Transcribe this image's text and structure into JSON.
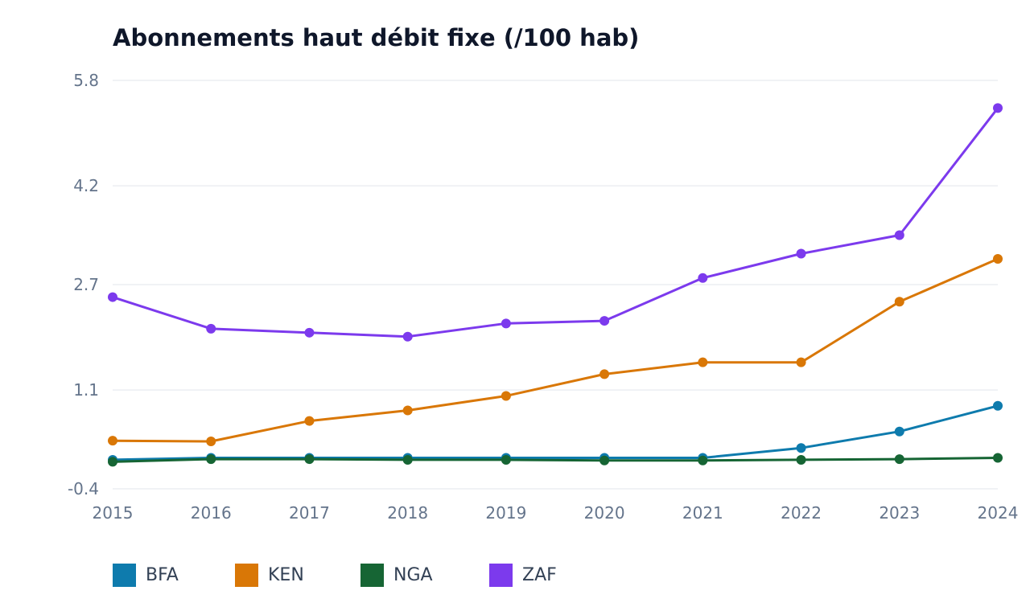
{
  "chart_data": {
    "type": "line",
    "title": "Abonnements haut débit fixe (/100 hab)",
    "xlabel": "",
    "ylabel": "",
    "x": [
      "2015",
      "2016",
      "2017",
      "2018",
      "2019",
      "2020",
      "2021",
      "2022",
      "2023",
      "2024"
    ],
    "yticks": [
      "5.8",
      "4.2",
      "2.7",
      "1.1",
      "-0.4"
    ],
    "ylim": [
      -0.4,
      5.8
    ],
    "grid": true,
    "legend_position": "bottom-left",
    "series": [
      {
        "name": "BFA",
        "color": "#0e7bad",
        "values": [
          0.04,
          0.07,
          0.07,
          0.07,
          0.07,
          0.07,
          0.07,
          0.22,
          0.47,
          0.86
        ]
      },
      {
        "name": "KEN",
        "color": "#d97706",
        "values": [
          0.33,
          0.32,
          0.63,
          0.79,
          1.01,
          1.34,
          1.52,
          1.52,
          2.44,
          3.09
        ]
      },
      {
        "name": "NGA",
        "color": "#166534",
        "values": [
          0.01,
          0.05,
          0.05,
          0.04,
          0.04,
          0.03,
          0.03,
          0.04,
          0.05,
          0.07
        ]
      },
      {
        "name": "ZAF",
        "color": "#7c3aed",
        "values": [
          2.51,
          2.03,
          1.97,
          1.91,
          2.11,
          2.15,
          2.8,
          3.17,
          3.45,
          5.38
        ]
      }
    ]
  }
}
